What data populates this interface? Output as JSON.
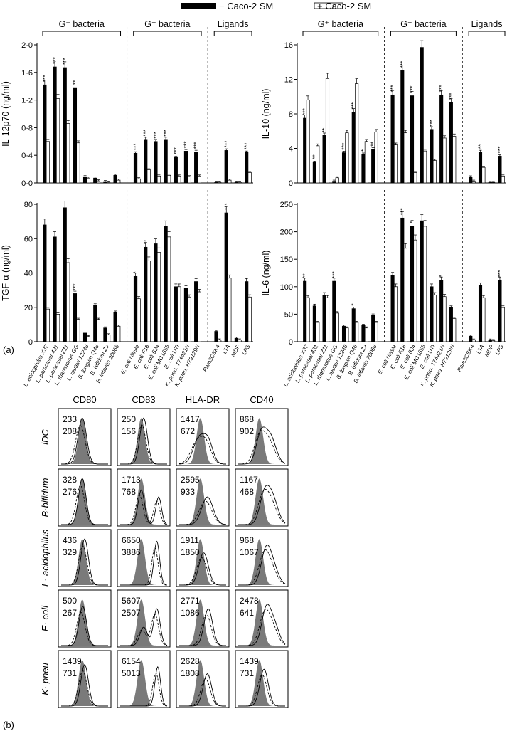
{
  "legend": {
    "minus": "− Caco-2 SM",
    "plus": "+ Caco-2 SM"
  },
  "groups": {
    "gpos": "G⁺ bacteria",
    "gneg": "G⁻ bacteria",
    "lig": "Ligands"
  },
  "panel_labels": {
    "a": "(a)",
    "b": "(b)"
  },
  "categories": [
    "L. acidophilus X37",
    "L. paracasei 431",
    "L. paracasei Z11",
    "L. rhamnosus GG",
    "L. reuteri 12246",
    "B. longum Q46",
    "B. bifidum Z9",
    "B. infantis 20066",
    "E. coli Nissle",
    "E. coli F18",
    "E. coli BJ4",
    "E. coli MG1655",
    "E. coli UTI",
    "K. pneu. T74421N",
    "K. pneu. H79129N",
    "Pam3CSK4",
    "LTA",
    "MDP",
    "LPS"
  ],
  "chart_data": [
    {
      "type": "bar",
      "ylabel": "IL-12p70 (ng/ml)",
      "ylim": [
        0,
        2.0
      ],
      "yticks": [
        "0·0",
        "0·4",
        "0·8",
        "1·2",
        "1·6",
        "2·0"
      ],
      "series": [
        {
          "name": "− Caco-2 SM",
          "values": [
            1.42,
            1.68,
            1.67,
            1.38,
            0.09,
            0.07,
            0.02,
            0.11,
            0.43,
            0.63,
            0.6,
            0.63,
            0.37,
            0.46,
            0.45,
            0.01,
            0.47,
            0.01,
            0.44
          ],
          "color": "#000000"
        },
        {
          "name": "+ Caco-2 SM",
          "values": [
            0.6,
            1.22,
            0.86,
            0.58,
            0.07,
            0.03,
            0.01,
            0.04,
            0.06,
            0.19,
            0.1,
            0.11,
            0.1,
            0.09,
            0.1,
            0.01,
            0.04,
            0.01,
            0.15
          ],
          "color": "#ffffff"
        }
      ],
      "stars": [
        "***",
        "***",
        "***",
        "**",
        "",
        "",
        "",
        "",
        "***",
        "***",
        "***",
        "***",
        "***",
        "***",
        "***",
        "",
        "***",
        "",
        "***"
      ]
    },
    {
      "type": "bar",
      "ylabel": "IL-10 (ng/ml)",
      "ylim": [
        0,
        16
      ],
      "yticks": [
        "0",
        "4",
        "8",
        "12",
        "16"
      ],
      "series": [
        {
          "name": "− Caco-2 SM",
          "values": [
            7.5,
            2.4,
            5.5,
            0.2,
            3.5,
            8.2,
            3.3,
            3.9,
            10.2,
            13.0,
            10.1,
            15.7,
            6.2,
            10.2,
            9.3,
            0.7,
            3.6,
            0.05,
            3.1
          ],
          "color": "#000000"
        },
        {
          "name": "+ Caco-2 SM",
          "values": [
            9.6,
            4.3,
            12.1,
            0.6,
            5.8,
            11.5,
            4.8,
            5.9,
            4.4,
            5.8,
            1.2,
            3.7,
            2.6,
            5.2,
            5.4,
            0.2,
            1.8,
            0.05,
            0.8
          ],
          "color": "#ffffff"
        }
      ],
      "stars": [
        "***",
        "**",
        "**",
        "",
        "***",
        "***",
        "*",
        "**",
        "***",
        "***",
        "***",
        "",
        "***",
        "***",
        "***",
        "",
        "**",
        "",
        "***"
      ]
    },
    {
      "type": "bar",
      "ylabel": "TGF-α (ng/ml)",
      "ylim": [
        0,
        80
      ],
      "yticks": [
        "0",
        "20",
        "40",
        "60",
        "80"
      ],
      "series": [
        {
          "name": "− Caco-2 SM",
          "values": [
            68,
            61,
            78,
            28,
            5,
            21,
            8,
            17,
            38,
            55,
            57,
            67,
            32,
            31,
            35,
            6,
            75,
            2,
            35
          ],
          "color": "#000000"
        },
        {
          "name": "+ Caco-2 SM",
          "values": [
            19,
            16,
            46,
            13,
            3,
            13,
            4,
            9,
            25,
            47,
            52,
            61,
            32,
            26,
            29,
            1,
            37,
            1,
            26
          ],
          "color": "#ffffff"
        }
      ],
      "stars": [
        "",
        "",
        "",
        "***",
        "",
        "",
        "",
        "",
        "*",
        "**",
        "",
        "",
        "",
        "",
        "",
        "",
        "***",
        "",
        ""
      ]
    },
    {
      "type": "bar",
      "ylabel": "IL-6 (ng/ml)",
      "ylim": [
        0,
        250
      ],
      "yticks": [
        "0",
        "50",
        "100",
        "150",
        "200",
        "250"
      ],
      "series": [
        {
          "name": "− Caco-2 SM",
          "values": [
            110,
            65,
            85,
            110,
            28,
            60,
            30,
            48,
            120,
            225,
            210,
            220,
            100,
            112,
            62,
            10,
            102,
            3,
            112
          ],
          "color": "#000000"
        },
        {
          "name": "+ Caco-2 SM",
          "values": [
            80,
            35,
            80,
            52,
            25,
            35,
            25,
            35,
            100,
            170,
            185,
            210,
            85,
            82,
            42,
            3,
            80,
            2,
            62
          ],
          "color": "#ffffff"
        }
      ],
      "stars": [
        "**",
        "",
        "",
        "***",
        "",
        "*",
        "",
        "",
        "",
        "***",
        "*",
        "",
        "",
        "*",
        "",
        "",
        "",
        "",
        "***"
      ]
    }
  ],
  "flow": {
    "columns": [
      "CD80",
      "CD83",
      "HLA-DR",
      "CD40"
    ],
    "rows": [
      {
        "label": "iDC",
        "vals": [
          [
            "233",
            "208"
          ],
          [
            "250",
            "156"
          ],
          [
            "1417",
            "672"
          ],
          [
            "868",
            "902"
          ]
        ]
      },
      {
        "label": "B·bifidum",
        "vals": [
          [
            "328",
            "276"
          ],
          [
            "1713",
            "768"
          ],
          [
            "2595",
            "933"
          ],
          [
            "1167",
            "468"
          ]
        ]
      },
      {
        "label": "L· acidophilus",
        "vals": [
          [
            "436",
            "329"
          ],
          [
            "6650",
            "3886"
          ],
          [
            "1911",
            "1850"
          ],
          [
            "968",
            "1067"
          ]
        ]
      },
      {
        "label": "E· coli",
        "vals": [
          [
            "500",
            "267"
          ],
          [
            "5607",
            "2507"
          ],
          [
            "2771",
            "1086"
          ],
          [
            "2478",
            "641"
          ]
        ]
      },
      {
        "label": "K· pneu",
        "vals": [
          [
            "1439",
            "731"
          ],
          [
            "6154",
            "5013"
          ],
          [
            "2628",
            "1808"
          ],
          [
            "1439",
            "731"
          ]
        ]
      }
    ]
  }
}
